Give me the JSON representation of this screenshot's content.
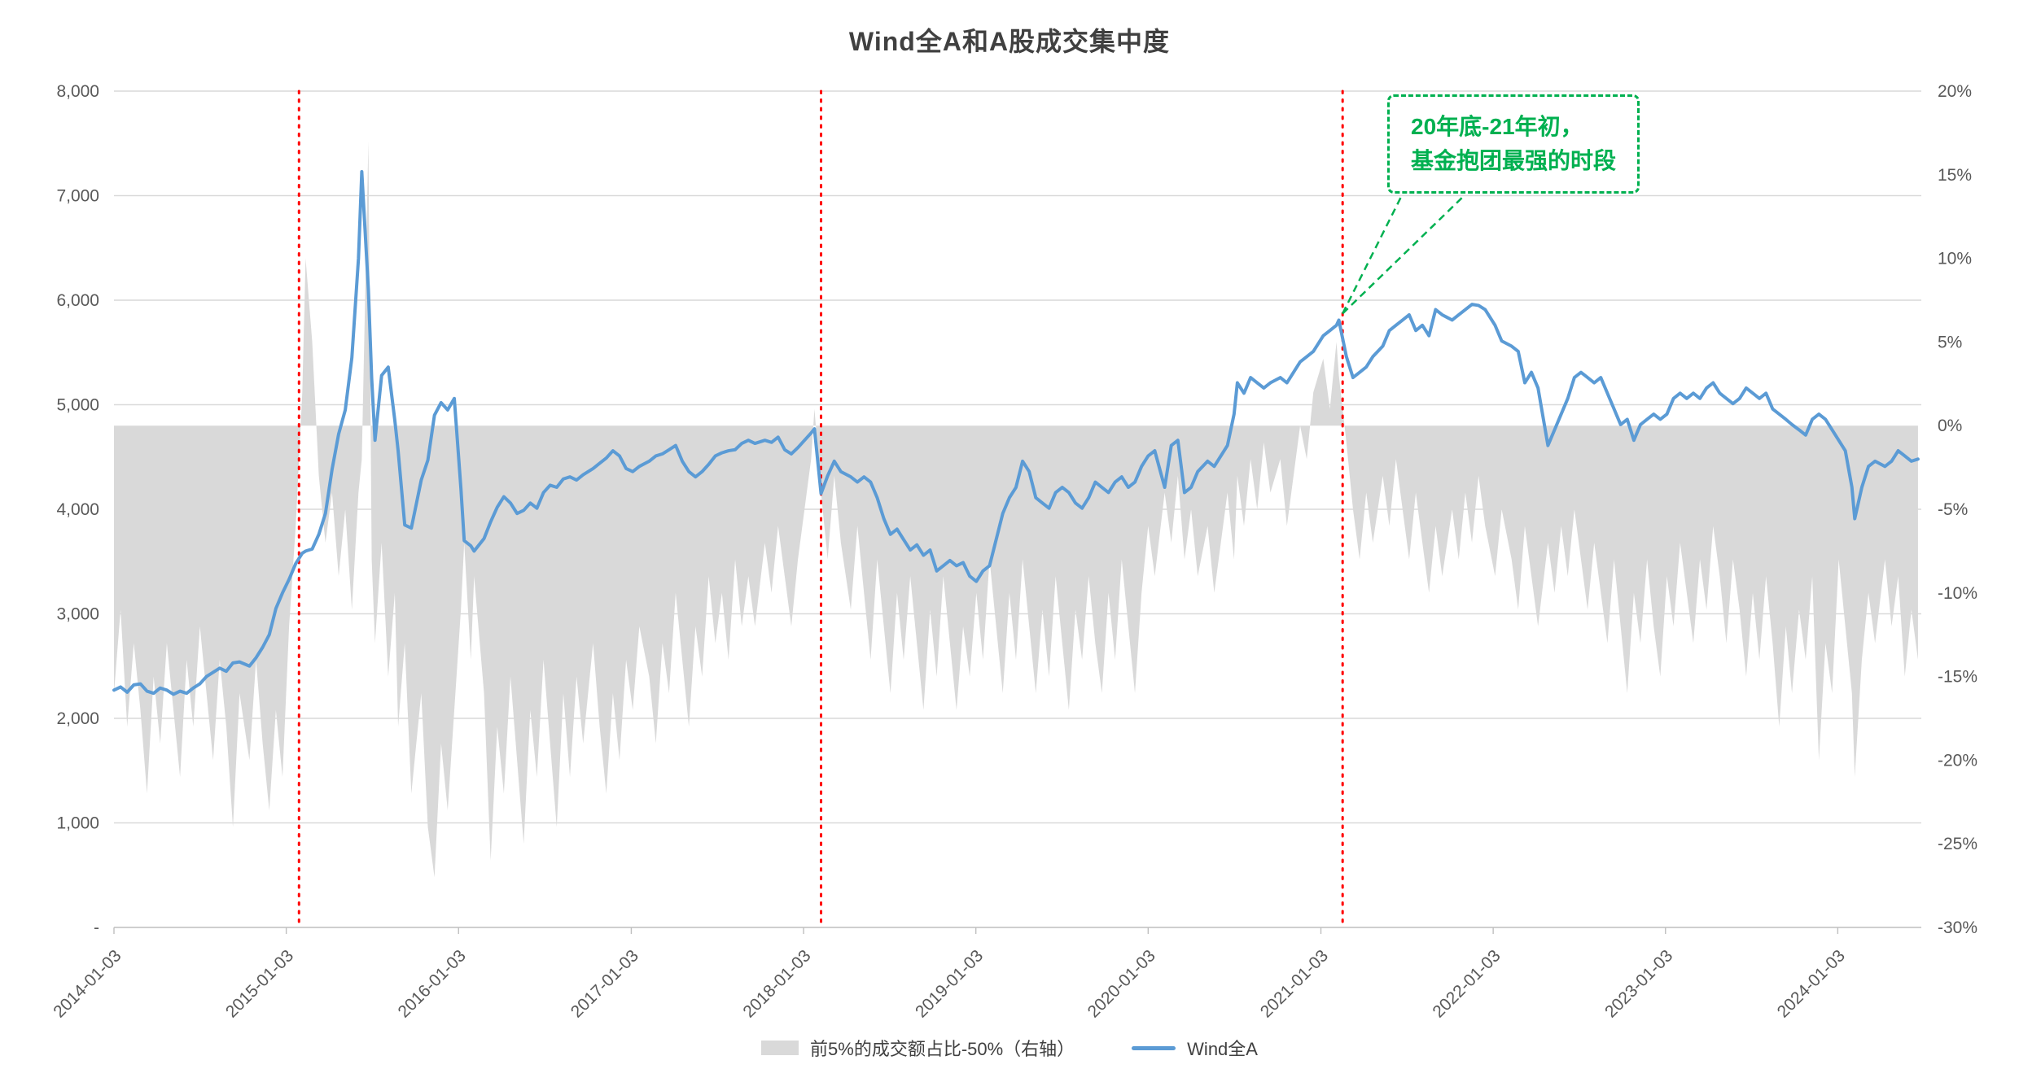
{
  "title": "Wind全A和A股成交集中度",
  "colors": {
    "line": "#5B9BD5",
    "area": "#D9D9D9",
    "marker_line": "#FF0000",
    "annotation": "#00B050",
    "grid": "#D9D9D9",
    "axis_line": "#BFBFBF",
    "axis_text": "#595959"
  },
  "annotation": {
    "line1": "20年底-21年初，",
    "line2": "基金抱团最强的时段",
    "target": {
      "date": "2021-02-18",
      "value": 5810
    }
  },
  "legend": [
    {
      "label": "前5%的成交额占比-50%（右轴）",
      "type": "area"
    },
    {
      "label": "Wind全A",
      "type": "line"
    }
  ],
  "axes": {
    "left_ticks": [
      "8,000",
      "7,000",
      "6,000",
      "5,000",
      "4,000",
      "3,000",
      "2,000",
      "1,000",
      "-"
    ],
    "right_ticks": [
      "20%",
      "15%",
      "10%",
      "5%",
      "0%",
      "-5%",
      "-10%",
      "-15%",
      "-20%",
      "-25%",
      "-30%"
    ],
    "x_ticks": [
      "2014-01-03",
      "2015-01-03",
      "2016-01-03",
      "2017-01-03",
      "2018-01-03",
      "2019-01-03",
      "2020-01-03",
      "2021-01-03",
      "2022-01-03",
      "2023-01-03",
      "2024-01-03"
    ]
  },
  "chart_data": {
    "type": "line",
    "title": "Wind全A和A股成交集中度",
    "left_ylim": [
      0,
      8000
    ],
    "right_ylim_percent": [
      -30,
      20
    ],
    "x_domain": [
      "2014-01-03",
      "2024-06-28"
    ],
    "grid": "horizontal-only",
    "legend_position": "bottom",
    "marker_dates": [
      "2015-01-30",
      "2018-02-09",
      "2021-02-18"
    ],
    "columns": [
      "date",
      "WindA_index_left",
      "top5pct_turnover_share_minus50_right_pct"
    ],
    "points": [
      [
        "2014-01-03",
        2270,
        -16
      ],
      [
        "2014-01-17",
        2300,
        -11
      ],
      [
        "2014-01-31",
        2250,
        -18
      ],
      [
        "2014-02-14",
        2320,
        -13
      ],
      [
        "2014-02-28",
        2330,
        -17
      ],
      [
        "2014-03-14",
        2260,
        -22
      ],
      [
        "2014-03-28",
        2240,
        -15
      ],
      [
        "2014-04-11",
        2290,
        -19
      ],
      [
        "2014-04-25",
        2270,
        -13
      ],
      [
        "2014-05-09",
        2230,
        -17
      ],
      [
        "2014-05-23",
        2260,
        -21
      ],
      [
        "2014-06-06",
        2240,
        -14
      ],
      [
        "2014-06-20",
        2290,
        -18
      ],
      [
        "2014-07-04",
        2330,
        -12
      ],
      [
        "2014-07-18",
        2400,
        -16
      ],
      [
        "2014-08-01",
        2440,
        -20
      ],
      [
        "2014-08-15",
        2480,
        -14
      ],
      [
        "2014-08-29",
        2450,
        -18
      ],
      [
        "2014-09-12",
        2530,
        -24
      ],
      [
        "2014-09-26",
        2540,
        -16
      ],
      [
        "2014-10-17",
        2500,
        -20
      ],
      [
        "2014-10-31",
        2580,
        -14
      ],
      [
        "2014-11-14",
        2680,
        -19
      ],
      [
        "2014-11-28",
        2800,
        -23
      ],
      [
        "2014-12-12",
        3050,
        -17
      ],
      [
        "2014-12-26",
        3200,
        -21
      ],
      [
        "2015-01-09",
        3330,
        -12
      ],
      [
        "2015-01-23",
        3480,
        -6
      ],
      [
        "2015-02-06",
        3580,
        2
      ],
      [
        "2015-02-13",
        3600,
        10
      ],
      [
        "2015-02-27",
        3620,
        5
      ],
      [
        "2015-03-13",
        3760,
        -3
      ],
      [
        "2015-03-27",
        3960,
        -7
      ],
      [
        "2015-04-10",
        4380,
        -4
      ],
      [
        "2015-04-24",
        4720,
        -9
      ],
      [
        "2015-05-08",
        4950,
        -5
      ],
      [
        "2015-05-22",
        5450,
        -11
      ],
      [
        "2015-06-05",
        6400,
        -4
      ],
      [
        "2015-06-12",
        7230,
        -2
      ],
      [
        "2015-06-26",
        6100,
        17
      ],
      [
        "2015-07-03",
        5250,
        -8
      ],
      [
        "2015-07-10",
        4660,
        -13
      ],
      [
        "2015-07-24",
        5280,
        -7
      ],
      [
        "2015-08-07",
        5360,
        -15
      ],
      [
        "2015-08-21",
        4850,
        -10
      ],
      [
        "2015-08-28",
        4560,
        -18
      ],
      [
        "2015-09-11",
        3850,
        -13
      ],
      [
        "2015-09-25",
        3820,
        -22
      ],
      [
        "2015-10-16",
        4280,
        -16
      ],
      [
        "2015-10-30",
        4470,
        -24
      ],
      [
        "2015-11-13",
        4900,
        -27
      ],
      [
        "2015-11-27",
        5020,
        -19
      ],
      [
        "2015-12-11",
        4950,
        -23
      ],
      [
        "2015-12-25",
        5060,
        -17
      ],
      [
        "2016-01-08",
        4200,
        -11
      ],
      [
        "2016-01-15",
        3700,
        -7
      ],
      [
        "2016-01-29",
        3650,
        -14
      ],
      [
        "2016-02-05",
        3600,
        -9
      ],
      [
        "2016-02-26",
        3720,
        -16
      ],
      [
        "2016-03-11",
        3880,
        -26
      ],
      [
        "2016-03-25",
        4020,
        -18
      ],
      [
        "2016-04-08",
        4120,
        -22
      ],
      [
        "2016-04-22",
        4060,
        -15
      ],
      [
        "2016-05-06",
        3960,
        -20
      ],
      [
        "2016-05-20",
        3990,
        -25
      ],
      [
        "2016-06-03",
        4060,
        -17
      ],
      [
        "2016-06-17",
        4010,
        -21
      ],
      [
        "2016-07-01",
        4160,
        -14
      ],
      [
        "2016-07-15",
        4230,
        -19
      ],
      [
        "2016-07-29",
        4210,
        -24
      ],
      [
        "2016-08-12",
        4290,
        -16
      ],
      [
        "2016-08-26",
        4310,
        -21
      ],
      [
        "2016-09-09",
        4280,
        -15
      ],
      [
        "2016-09-23",
        4330,
        -19
      ],
      [
        "2016-10-14",
        4390,
        -13
      ],
      [
        "2016-10-28",
        4440,
        -18
      ],
      [
        "2016-11-11",
        4490,
        -22
      ],
      [
        "2016-11-25",
        4560,
        -16
      ],
      [
        "2016-12-09",
        4510,
        -20
      ],
      [
        "2016-12-23",
        4390,
        -14
      ],
      [
        "2017-01-06",
        4360,
        -17
      ],
      [
        "2017-01-20",
        4410,
        -12
      ],
      [
        "2017-02-10",
        4460,
        -15
      ],
      [
        "2017-02-24",
        4510,
        -19
      ],
      [
        "2017-03-10",
        4530,
        -13
      ],
      [
        "2017-03-24",
        4570,
        -16
      ],
      [
        "2017-04-07",
        4610,
        -10
      ],
      [
        "2017-04-21",
        4460,
        -14
      ],
      [
        "2017-05-05",
        4360,
        -18
      ],
      [
        "2017-05-19",
        4310,
        -12
      ],
      [
        "2017-06-02",
        4360,
        -15
      ],
      [
        "2017-06-16",
        4430,
        -9
      ],
      [
        "2017-06-30",
        4510,
        -13
      ],
      [
        "2017-07-14",
        4540,
        -10
      ],
      [
        "2017-07-28",
        4560,
        -14
      ],
      [
        "2017-08-11",
        4570,
        -8
      ],
      [
        "2017-08-25",
        4630,
        -12
      ],
      [
        "2017-09-08",
        4660,
        -9
      ],
      [
        "2017-09-22",
        4630,
        -12
      ],
      [
        "2017-10-13",
        4660,
        -7
      ],
      [
        "2017-10-27",
        4640,
        -10
      ],
      [
        "2017-11-10",
        4690,
        -6
      ],
      [
        "2017-11-24",
        4570,
        -9
      ],
      [
        "2017-12-08",
        4530,
        -12
      ],
      [
        "2017-12-22",
        4590,
        -8
      ],
      [
        "2018-01-05",
        4660,
        -5
      ],
      [
        "2018-01-19",
        4730,
        -2
      ],
      [
        "2018-01-26",
        4770,
        1
      ],
      [
        "2018-02-09",
        4150,
        -4
      ],
      [
        "2018-02-23",
        4320,
        -8
      ],
      [
        "2018-03-09",
        4460,
        -3
      ],
      [
        "2018-03-23",
        4360,
        -7
      ],
      [
        "2018-04-13",
        4310,
        -11
      ],
      [
        "2018-04-27",
        4260,
        -6
      ],
      [
        "2018-05-11",
        4310,
        -10
      ],
      [
        "2018-05-25",
        4260,
        -14
      ],
      [
        "2018-06-08",
        4110,
        -8
      ],
      [
        "2018-06-22",
        3910,
        -12
      ],
      [
        "2018-07-06",
        3760,
        -16
      ],
      [
        "2018-07-20",
        3810,
        -10
      ],
      [
        "2018-08-03",
        3710,
        -14
      ],
      [
        "2018-08-17",
        3610,
        -9
      ],
      [
        "2018-08-31",
        3660,
        -13
      ],
      [
        "2018-09-14",
        3560,
        -17
      ],
      [
        "2018-09-28",
        3610,
        -11
      ],
      [
        "2018-10-12",
        3410,
        -15
      ],
      [
        "2018-10-26",
        3460,
        -9
      ],
      [
        "2018-11-09",
        3510,
        -13
      ],
      [
        "2018-11-23",
        3460,
        -17
      ],
      [
        "2018-12-07",
        3490,
        -12
      ],
      [
        "2018-12-21",
        3360,
        -15
      ],
      [
        "2019-01-04",
        3310,
        -10
      ],
      [
        "2019-01-18",
        3410,
        -14
      ],
      [
        "2019-02-01",
        3460,
        -8
      ],
      [
        "2019-02-15",
        3710,
        -12
      ],
      [
        "2019-03-01",
        3960,
        -16
      ],
      [
        "2019-03-15",
        4110,
        -10
      ],
      [
        "2019-03-29",
        4210,
        -14
      ],
      [
        "2019-04-12",
        4460,
        -8
      ],
      [
        "2019-04-26",
        4360,
        -12
      ],
      [
        "2019-05-10",
        4110,
        -16
      ],
      [
        "2019-05-24",
        4060,
        -11
      ],
      [
        "2019-06-07",
        4010,
        -15
      ],
      [
        "2019-06-21",
        4160,
        -9
      ],
      [
        "2019-07-05",
        4210,
        -13
      ],
      [
        "2019-07-19",
        4160,
        -17
      ],
      [
        "2019-08-02",
        4060,
        -11
      ],
      [
        "2019-08-16",
        4010,
        -14
      ],
      [
        "2019-08-30",
        4110,
        -9
      ],
      [
        "2019-09-13",
        4260,
        -13
      ],
      [
        "2019-09-27",
        4210,
        -16
      ],
      [
        "2019-10-11",
        4160,
        -10
      ],
      [
        "2019-10-25",
        4260,
        -14
      ],
      [
        "2019-11-08",
        4310,
        -8
      ],
      [
        "2019-11-22",
        4210,
        -12
      ],
      [
        "2019-12-06",
        4260,
        -16
      ],
      [
        "2019-12-20",
        4410,
        -10
      ],
      [
        "2020-01-03",
        4510,
        -6
      ],
      [
        "2020-01-17",
        4560,
        -9
      ],
      [
        "2020-02-07",
        4210,
        -4
      ],
      [
        "2020-02-21",
        4610,
        -7
      ],
      [
        "2020-03-06",
        4660,
        -3
      ],
      [
        "2020-03-20",
        4160,
        -8
      ],
      [
        "2020-04-03",
        4210,
        -5
      ],
      [
        "2020-04-17",
        4360,
        -9
      ],
      [
        "2020-05-08",
        4460,
        -6
      ],
      [
        "2020-05-22",
        4410,
        -10
      ],
      [
        "2020-06-05",
        4510,
        -7
      ],
      [
        "2020-06-19",
        4610,
        -4
      ],
      [
        "2020-07-03",
        4910,
        -8
      ],
      [
        "2020-07-10",
        5210,
        -3
      ],
      [
        "2020-07-24",
        5110,
        -6
      ],
      [
        "2020-08-07",
        5260,
        -2
      ],
      [
        "2020-08-21",
        5210,
        -5
      ],
      [
        "2020-09-04",
        5160,
        -1
      ],
      [
        "2020-09-18",
        5210,
        -4
      ],
      [
        "2020-10-09",
        5260,
        -2
      ],
      [
        "2020-10-23",
        5210,
        -6
      ],
      [
        "2020-11-06",
        5310,
        -3
      ],
      [
        "2020-11-20",
        5410,
        0
      ],
      [
        "2020-12-04",
        5460,
        -2
      ],
      [
        "2020-12-18",
        5510,
        2
      ],
      [
        "2021-01-08",
        5660,
        4
      ],
      [
        "2021-01-22",
        5710,
        1
      ],
      [
        "2021-02-05",
        5760,
        5
      ],
      [
        "2021-02-10",
        5810,
        3
      ],
      [
        "2021-02-26",
        5460,
        -1
      ],
      [
        "2021-03-12",
        5260,
        -5
      ],
      [
        "2021-03-26",
        5310,
        -8
      ],
      [
        "2021-04-09",
        5360,
        -4
      ],
      [
        "2021-04-23",
        5460,
        -7
      ],
      [
        "2021-05-14",
        5560,
        -3
      ],
      [
        "2021-05-28",
        5710,
        -6
      ],
      [
        "2021-06-11",
        5760,
        -2
      ],
      [
        "2021-06-25",
        5810,
        -5
      ],
      [
        "2021-07-09",
        5860,
        -8
      ],
      [
        "2021-07-23",
        5710,
        -4
      ],
      [
        "2021-08-06",
        5760,
        -7
      ],
      [
        "2021-08-20",
        5660,
        -10
      ],
      [
        "2021-09-03",
        5910,
        -6
      ],
      [
        "2021-09-17",
        5860,
        -9
      ],
      [
        "2021-10-08",
        5810,
        -5
      ],
      [
        "2021-10-22",
        5860,
        -8
      ],
      [
        "2021-11-05",
        5910,
        -4
      ],
      [
        "2021-11-19",
        5960,
        -7
      ],
      [
        "2021-12-03",
        5950,
        -3
      ],
      [
        "2021-12-17",
        5910,
        -6
      ],
      [
        "2022-01-07",
        5760,
        -9
      ],
      [
        "2022-01-21",
        5610,
        -5
      ],
      [
        "2022-02-11",
        5560,
        -8
      ],
      [
        "2022-02-25",
        5510,
        -11
      ],
      [
        "2022-03-11",
        5210,
        -6
      ],
      [
        "2022-03-25",
        5310,
        -9
      ],
      [
        "2022-04-08",
        5160,
        -12
      ],
      [
        "2022-04-29",
        4610,
        -7
      ],
      [
        "2022-05-13",
        4760,
        -10
      ],
      [
        "2022-05-27",
        4910,
        -6
      ],
      [
        "2022-06-10",
        5060,
        -9
      ],
      [
        "2022-06-24",
        5260,
        -5
      ],
      [
        "2022-07-08",
        5310,
        -8
      ],
      [
        "2022-07-22",
        5260,
        -11
      ],
      [
        "2022-08-05",
        5210,
        -7
      ],
      [
        "2022-08-19",
        5260,
        -10
      ],
      [
        "2022-09-02",
        5110,
        -13
      ],
      [
        "2022-09-16",
        4960,
        -8
      ],
      [
        "2022-09-30",
        4810,
        -12
      ],
      [
        "2022-10-14",
        4860,
        -16
      ],
      [
        "2022-10-28",
        4660,
        -10
      ],
      [
        "2022-11-11",
        4810,
        -13
      ],
      [
        "2022-11-25",
        4860,
        -8
      ],
      [
        "2022-12-09",
        4910,
        -12
      ],
      [
        "2022-12-23",
        4860,
        -15
      ],
      [
        "2023-01-06",
        4910,
        -9
      ],
      [
        "2023-01-20",
        5060,
        -12
      ],
      [
        "2023-02-03",
        5110,
        -7
      ],
      [
        "2023-02-17",
        5060,
        -10
      ],
      [
        "2023-03-03",
        5110,
        -13
      ],
      [
        "2023-03-17",
        5060,
        -8
      ],
      [
        "2023-03-31",
        5160,
        -11
      ],
      [
        "2023-04-14",
        5210,
        -6
      ],
      [
        "2023-04-28",
        5110,
        -9
      ],
      [
        "2023-05-12",
        5060,
        -13
      ],
      [
        "2023-05-26",
        5010,
        -8
      ],
      [
        "2023-06-09",
        5060,
        -11
      ],
      [
        "2023-06-23",
        5160,
        -15
      ],
      [
        "2023-07-07",
        5110,
        -10
      ],
      [
        "2023-07-21",
        5060,
        -14
      ],
      [
        "2023-08-04",
        5110,
        -9
      ],
      [
        "2023-08-18",
        4960,
        -13
      ],
      [
        "2023-09-01",
        4910,
        -18
      ],
      [
        "2023-09-15",
        4860,
        -12
      ],
      [
        "2023-09-28",
        4810,
        -16
      ],
      [
        "2023-10-13",
        4760,
        -11
      ],
      [
        "2023-10-27",
        4710,
        -14
      ],
      [
        "2023-11-10",
        4860,
        -9
      ],
      [
        "2023-11-24",
        4910,
        -20
      ],
      [
        "2023-12-08",
        4860,
        -13
      ],
      [
        "2023-12-22",
        4760,
        -16
      ],
      [
        "2024-01-05",
        4660,
        -8
      ],
      [
        "2024-01-19",
        4560,
        -12
      ],
      [
        "2024-02-02",
        4210,
        -16
      ],
      [
        "2024-02-08",
        3910,
        -21
      ],
      [
        "2024-02-23",
        4210,
        -14
      ],
      [
        "2024-03-08",
        4410,
        -10
      ],
      [
        "2024-03-22",
        4460,
        -13
      ],
      [
        "2024-04-12",
        4410,
        -8
      ],
      [
        "2024-04-26",
        4460,
        -12
      ],
      [
        "2024-05-10",
        4560,
        -9
      ],
      [
        "2024-05-24",
        4510,
        -15
      ],
      [
        "2024-06-07",
        4460,
        -11
      ],
      [
        "2024-06-21",
        4480,
        -14
      ]
    ]
  }
}
